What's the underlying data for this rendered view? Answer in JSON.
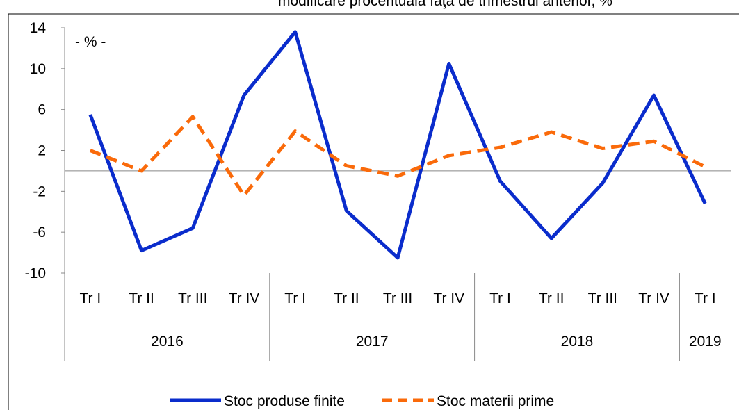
{
  "chart_data": {
    "type": "line",
    "subtitle": "modificare procentuală faţă de trimestrul anterior, %",
    "annotation": "- % -",
    "groups": [
      {
        "name": "2016",
        "categories": [
          "Tr I",
          "Tr II",
          "Tr III",
          "Tr IV"
        ]
      },
      {
        "name": "2017",
        "categories": [
          "Tr I",
          "Tr II",
          "Tr III",
          "Tr IV"
        ]
      },
      {
        "name": "2018",
        "categories": [
          "Tr I",
          "Tr II",
          "Tr III",
          "Tr IV"
        ]
      },
      {
        "name": "2019",
        "categories": [
          "Tr I"
        ]
      }
    ],
    "series": [
      {
        "name": "Stoc produse finite",
        "color": "#0a2ccc",
        "dash": false,
        "values": [
          5.5,
          -7.8,
          -5.6,
          7.4,
          13.6,
          -3.9,
          -8.5,
          10.5,
          -1.0,
          -6.6,
          -1.2,
          7.4,
          -3.2
        ]
      },
      {
        "name": "Stoc materii prime",
        "color": "#fa6a0a",
        "dash": true,
        "values": [
          2.0,
          0.0,
          5.3,
          -2.4,
          3.9,
          0.5,
          -0.5,
          1.5,
          2.3,
          3.8,
          2.2,
          2.9,
          0.4
        ]
      }
    ],
    "ylim": [
      -10,
      14
    ],
    "yticks": [
      -10,
      -6,
      -2,
      2,
      6,
      10,
      14
    ],
    "legend": "bottom"
  }
}
